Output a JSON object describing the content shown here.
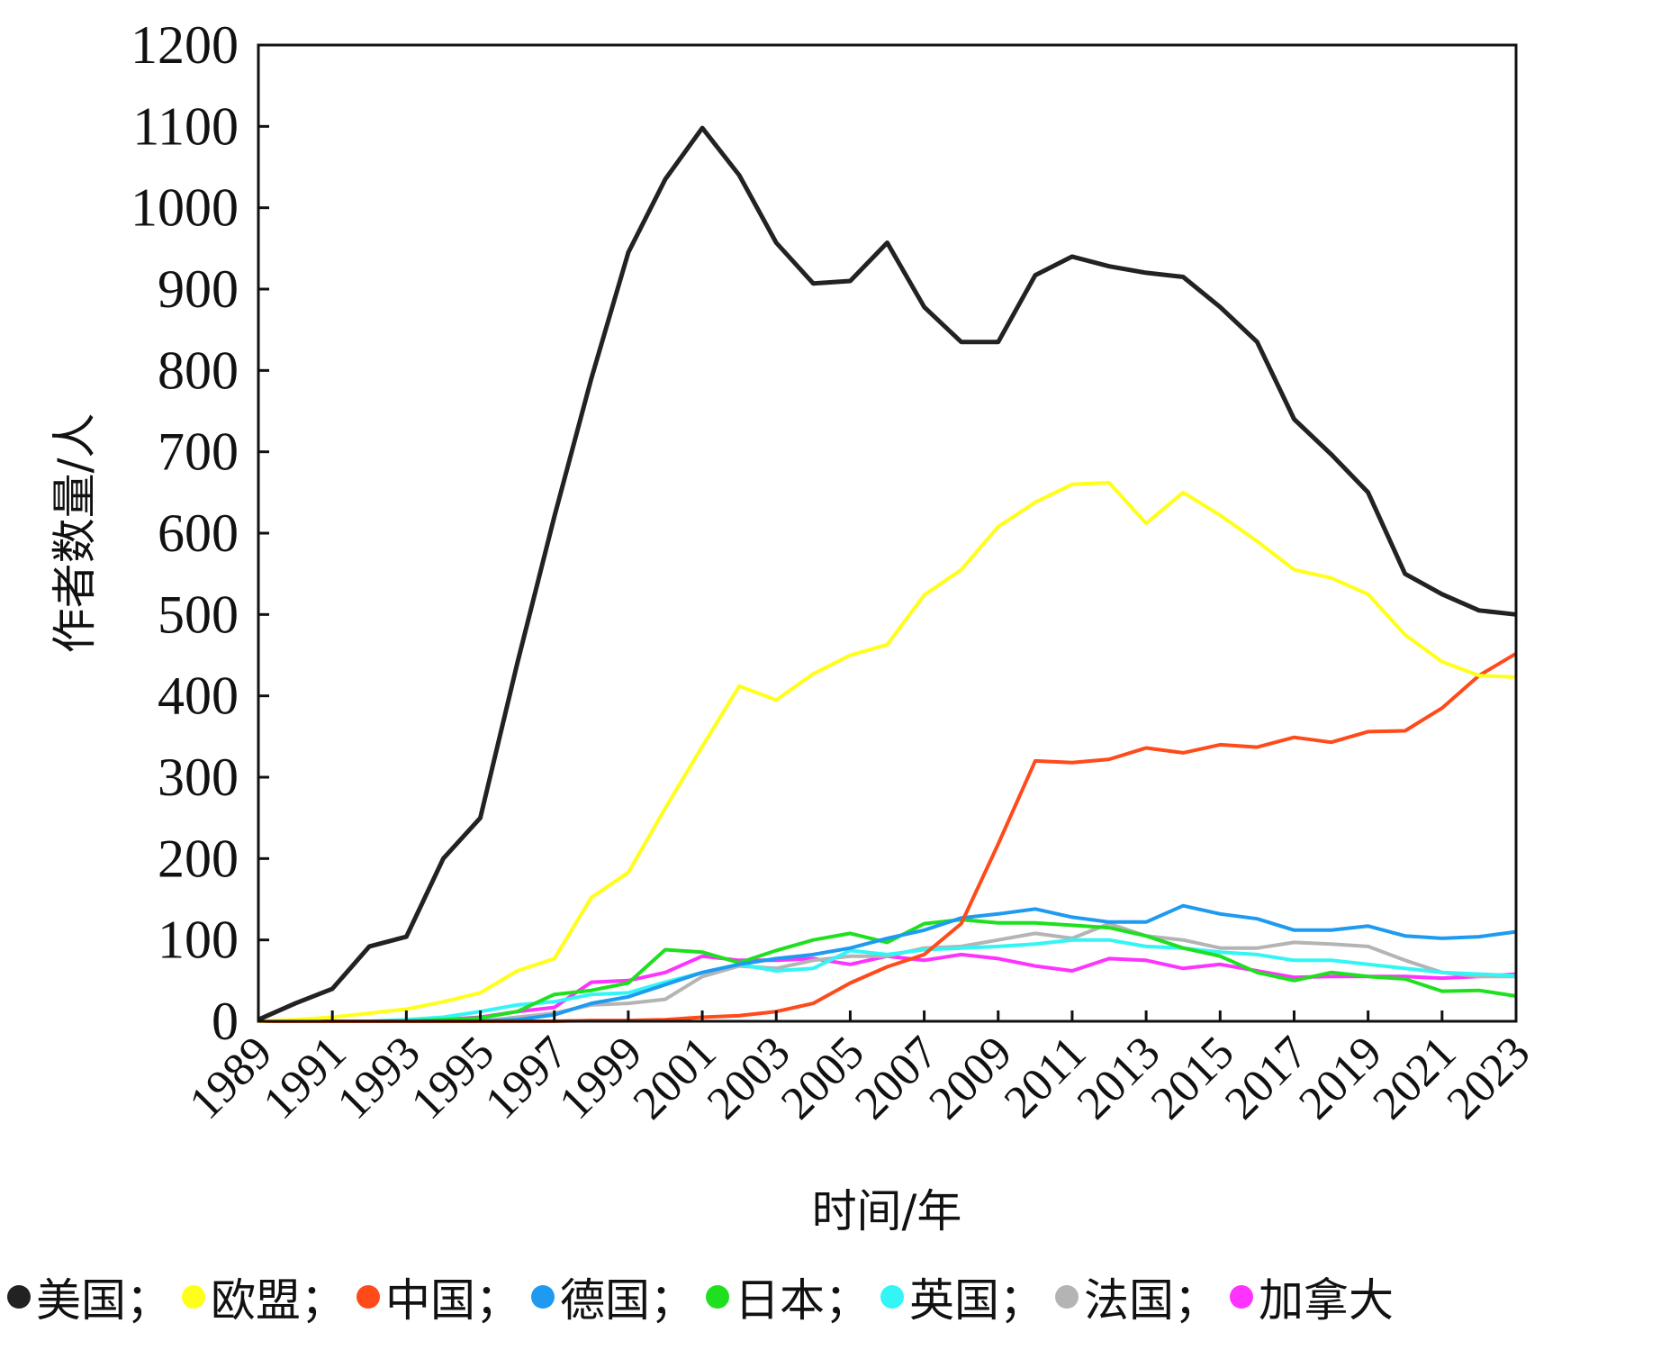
{
  "chart_data": {
    "type": "line",
    "xlabel": "时间/年",
    "ylabel": "作者数量/人",
    "ylim": [
      0,
      1200
    ],
    "yticks": [
      0,
      100,
      200,
      300,
      400,
      500,
      600,
      700,
      800,
      900,
      1000,
      1100,
      1200
    ],
    "xlim": [
      1989,
      2023
    ],
    "xticks": [
      1989,
      1991,
      1993,
      1995,
      1997,
      1999,
      2001,
      2003,
      2005,
      2007,
      2009,
      2011,
      2013,
      2015,
      2017,
      2019,
      2021,
      2023
    ],
    "x": [
      1989,
      1990,
      1991,
      1992,
      1993,
      1994,
      1995,
      1996,
      1997,
      1998,
      1999,
      2000,
      2001,
      2002,
      2003,
      2004,
      2005,
      2006,
      2007,
      2008,
      2009,
      2010,
      2011,
      2012,
      2013,
      2014,
      2015,
      2016,
      2017,
      2018,
      2019,
      2020,
      2021,
      2022,
      2023
    ],
    "grid": false,
    "legend_position": "bottom",
    "legend_separator": "；",
    "series": [
      {
        "name": "美国",
        "color": "#222222",
        "values": [
          2,
          22,
          40,
          92,
          104,
          200,
          250,
          440,
          620,
          790,
          945,
          1035,
          1098,
          1040,
          957,
          907,
          910,
          957,
          878,
          835,
          835,
          917,
          940,
          928,
          920,
          915,
          878,
          835,
          740,
          697,
          650,
          550,
          525,
          505,
          500
        ]
      },
      {
        "name": "欧盟",
        "color": "#ffff1a",
        "values": [
          0,
          2,
          5,
          10,
          15,
          24,
          35,
          62,
          77,
          152,
          183,
          262,
          338,
          412,
          395,
          427,
          450,
          463,
          524,
          555,
          608,
          638,
          660,
          662,
          612,
          650,
          622,
          590,
          555,
          545,
          525,
          475,
          442,
          425,
          423
        ]
      },
      {
        "name": "中国",
        "color": "#ff4a1a",
        "values": [
          0,
          0,
          0,
          0,
          0,
          0,
          0,
          0,
          0,
          1,
          1,
          2,
          5,
          7,
          12,
          22,
          47,
          67,
          82,
          120,
          218,
          320,
          318,
          322,
          336,
          330,
          340,
          337,
          349,
          343,
          356,
          357,
          385,
          425,
          452
        ]
      },
      {
        "name": "德国",
        "color": "#1e9bf0",
        "values": [
          0,
          0,
          0,
          0,
          0,
          0,
          0,
          2,
          8,
          22,
          30,
          45,
          60,
          70,
          77,
          82,
          90,
          102,
          112,
          127,
          132,
          138,
          128,
          122,
          122,
          142,
          132,
          126,
          112,
          112,
          117,
          105,
          102,
          104,
          110
        ]
      },
      {
        "name": "日本",
        "color": "#1ee01e",
        "values": [
          0,
          0,
          0,
          0,
          0,
          2,
          4,
          12,
          33,
          38,
          47,
          88,
          85,
          72,
          87,
          100,
          108,
          97,
          120,
          125,
          121,
          121,
          118,
          115,
          105,
          90,
          80,
          60,
          50,
          60,
          55,
          52,
          37,
          38,
          31
        ]
      },
      {
        "name": "英国",
        "color": "#33f5f5",
        "values": [
          0,
          0,
          0,
          0,
          2,
          5,
          12,
          20,
          24,
          33,
          35,
          48,
          60,
          70,
          62,
          65,
          87,
          82,
          88,
          90,
          92,
          95,
          100,
          100,
          92,
          90,
          85,
          82,
          75,
          75,
          70,
          65,
          60,
          58,
          56
        ]
      },
      {
        "name": "法国",
        "color": "#b4b4b4",
        "values": [
          0,
          0,
          0,
          0,
          0,
          0,
          0,
          5,
          10,
          20,
          22,
          27,
          55,
          68,
          65,
          75,
          80,
          80,
          90,
          92,
          100,
          108,
          102,
          120,
          105,
          100,
          90,
          90,
          97,
          95,
          92,
          75,
          60,
          55,
          55
        ]
      },
      {
        "name": "加拿大",
        "color": "#ff33ff",
        "values": [
          0,
          0,
          0,
          0,
          0,
          2,
          5,
          12,
          17,
          48,
          50,
          60,
          80,
          75,
          75,
          77,
          70,
          80,
          75,
          82,
          77,
          68,
          62,
          77,
          75,
          65,
          70,
          62,
          54,
          55,
          55,
          55,
          53,
          55,
          58
        ]
      }
    ]
  }
}
